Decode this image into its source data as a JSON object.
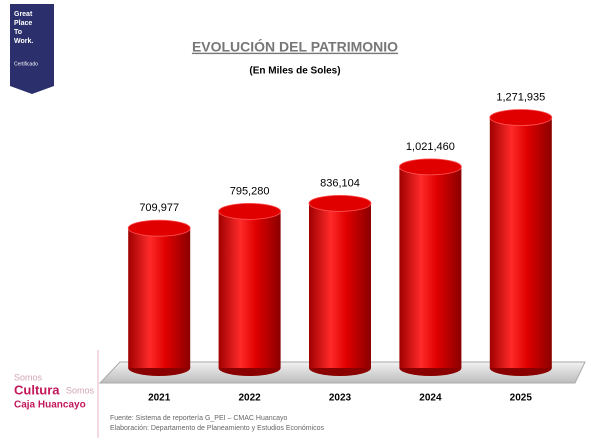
{
  "chart_data": {
    "type": "bar",
    "title": "EVOLUCIÓN DEL PATRIMONIO",
    "subtitle": "(En Miles de Soles)",
    "categories": [
      "2021",
      "2022",
      "2023",
      "2024",
      "2025"
    ],
    "values": [
      709977,
      795280,
      836104,
      1021460,
      1271935
    ],
    "value_labels": [
      "709,977",
      "795,280",
      "836,104",
      "1,021,460",
      "1,271,935"
    ],
    "color": "#e00000",
    "ylim": [
      0,
      1300000
    ]
  },
  "branding": {
    "gptw": [
      "Great",
      "Place",
      "To",
      "Work.",
      "Certificado"
    ],
    "caja": [
      "Somos",
      "Cultura",
      "Somos",
      "Caja Huancayo"
    ]
  },
  "source": [
    "Fuente: Sistema de reportería G_PEI – CMAC Huancayo",
    "Elaboración: Departamento de Planeamiento y Estudios Económicos"
  ]
}
